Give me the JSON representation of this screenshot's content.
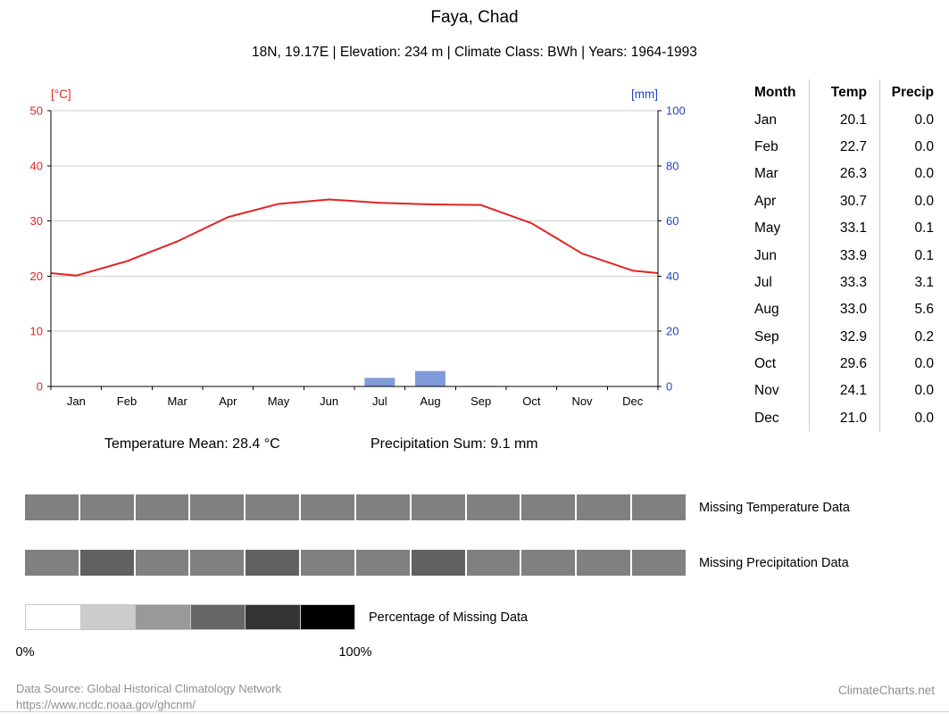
{
  "header": {
    "title": "Faya, Chad",
    "subtitle": "18N, 19.17E | Elevation: 234 m | Climate Class: BWh | Years: 1964-1993"
  },
  "chart_data": {
    "type": "line+bar",
    "title": "Climate chart for Faya, Chad",
    "categories": [
      "Jan",
      "Feb",
      "Mar",
      "Apr",
      "May",
      "Jun",
      "Jul",
      "Aug",
      "Sep",
      "Oct",
      "Nov",
      "Dec"
    ],
    "series": [
      {
        "name": "Temperature",
        "type": "line",
        "axis": "left",
        "color": "#e32322",
        "values": [
          20.1,
          22.7,
          26.3,
          30.7,
          33.1,
          33.9,
          33.3,
          33.0,
          32.9,
          29.6,
          24.1,
          21.0
        ]
      },
      {
        "name": "Precipitation",
        "type": "bar",
        "axis": "right",
        "color": "#7f9bd9",
        "values": [
          0.0,
          0.0,
          0.0,
          0.0,
          0.1,
          0.1,
          3.1,
          5.6,
          0.2,
          0.0,
          0.0,
          0.0
        ]
      }
    ],
    "left_axis": {
      "label": "[°C]",
      "min": 0,
      "max": 50,
      "ticks": [
        0,
        10,
        20,
        30,
        40,
        50
      ],
      "color": "#e32322"
    },
    "right_axis": {
      "label": "[mm]",
      "min": 0,
      "max": 100,
      "ticks": [
        0,
        20,
        40,
        60,
        80,
        100
      ],
      "color": "#2144c6"
    },
    "grid": true,
    "grid_color": "#cccccc",
    "legend_position": "none"
  },
  "table": {
    "headers": [
      "Month",
      "Temp",
      "Precip"
    ],
    "rows": [
      [
        "Jan",
        "20.1",
        "0.0"
      ],
      [
        "Feb",
        "22.7",
        "0.0"
      ],
      [
        "Mar",
        "26.3",
        "0.0"
      ],
      [
        "Apr",
        "30.7",
        "0.0"
      ],
      [
        "May",
        "33.1",
        "0.1"
      ],
      [
        "Jun",
        "33.9",
        "0.1"
      ],
      [
        "Jul",
        "33.3",
        "3.1"
      ],
      [
        "Aug",
        "33.0",
        "5.6"
      ],
      [
        "Sep",
        "32.9",
        "0.2"
      ],
      [
        "Oct",
        "29.6",
        "0.0"
      ],
      [
        "Nov",
        "24.1",
        "0.0"
      ],
      [
        "Dec",
        "21.0",
        "0.0"
      ]
    ]
  },
  "summary": {
    "temperature_mean": "Temperature Mean: 28.4 °C",
    "precipitation_sum": "Precipitation Sum: 9.1 mm"
  },
  "missing_data": {
    "temperature": {
      "label": "Missing Temperature Data",
      "values_pct": [
        50,
        50,
        50,
        50,
        50,
        50,
        50,
        50,
        50,
        50,
        50,
        50
      ]
    },
    "precipitation": {
      "label": "Missing Precipitation Data",
      "values_pct": [
        50,
        62,
        50,
        50,
        62,
        50,
        50,
        62,
        50,
        50,
        50,
        50
      ]
    },
    "legend": {
      "label": "Percentage of Missing Data",
      "steps_pct": [
        0,
        20,
        40,
        60,
        80,
        100
      ],
      "min_label": "0%",
      "max_label": "100%"
    }
  },
  "footer": {
    "source_line1": "Data Source: Global Historical Climatology Network",
    "source_line2": "https://www.ncdc.noaa.gov/ghcnm/",
    "brand": "ClimateCharts.net"
  }
}
